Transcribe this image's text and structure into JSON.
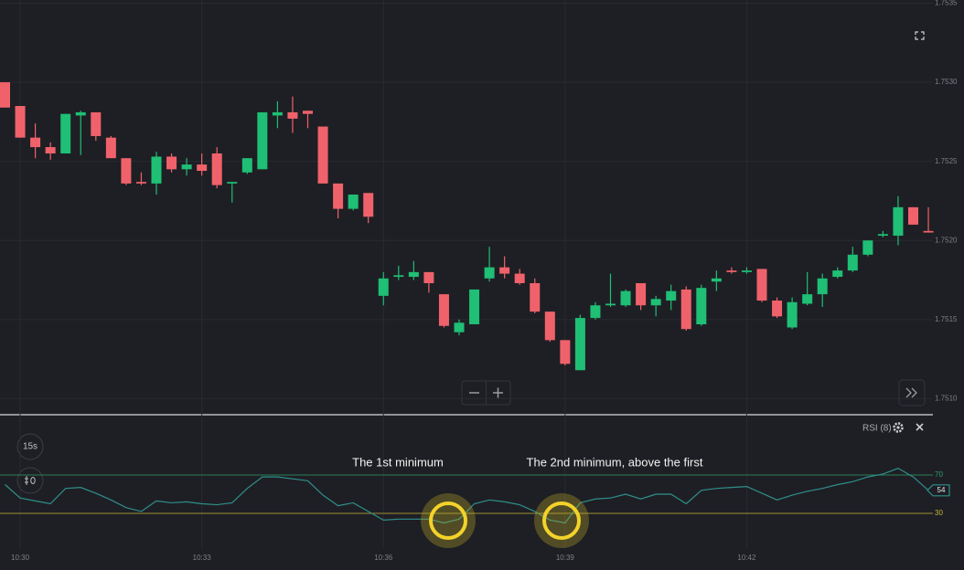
{
  "controls": {
    "interval": "15s"
  },
  "chart_data": [
    {
      "type": "candlestick",
      "categories": [
        null,
        "10:30",
        null,
        null,
        null,
        null,
        null,
        null,
        null,
        null,
        null,
        null,
        null,
        "10:33",
        null,
        null,
        null,
        null,
        null,
        null,
        null,
        null,
        null,
        null,
        null,
        "10:36",
        null,
        null,
        null,
        null,
        null,
        null,
        null,
        null,
        null,
        null,
        null,
        "10:39",
        null,
        null,
        null,
        null,
        null,
        null,
        null,
        null,
        null,
        null,
        null,
        "10:42",
        null,
        null,
        null,
        null,
        null,
        null,
        null,
        null,
        null,
        null,
        null,
        null
      ],
      "open": [
        1.753,
        1.75285,
        1.75265,
        1.75259,
        1.75255,
        1.75279,
        1.75281,
        1.75265,
        1.75252,
        1.75237,
        1.75236,
        1.75253,
        1.75245,
        1.75248,
        1.75255,
        1.75236,
        1.75243,
        1.75245,
        1.75279,
        1.75281,
        1.75282,
        1.75272,
        1.75236,
        1.7522,
        1.7523,
        1.75165,
        1.75177,
        1.75177,
        1.7518,
        1.75166,
        1.75142,
        1.75147,
        1.75176,
        1.75183,
        1.75179,
        1.75173,
        1.75155,
        1.75137,
        1.75118,
        1.75151,
        1.75159,
        1.75159,
        1.75173,
        1.75159,
        1.75162,
        1.75169,
        1.75147,
        1.75174,
        1.75181,
        1.7518,
        1.75182,
        1.75162,
        1.75145,
        1.7516,
        1.75166,
        1.75177,
        1.75181,
        1.75191,
        1.75203,
        1.75203,
        1.75221,
        1.75206
      ],
      "high": [
        1.753,
        1.75285,
        1.75274,
        1.75262,
        1.7528,
        1.75282,
        1.75281,
        1.75266,
        1.75252,
        1.75243,
        1.75256,
        1.75255,
        1.75252,
        1.75255,
        1.75259,
        1.75237,
        1.75252,
        1.75281,
        1.75288,
        1.75291,
        1.75282,
        1.75272,
        1.75236,
        1.75229,
        1.7523,
        1.7518,
        1.75184,
        1.75187,
        1.7518,
        1.75166,
        1.7515,
        1.75169,
        1.75196,
        1.7519,
        1.75182,
        1.75176,
        1.75155,
        1.75137,
        1.75153,
        1.75161,
        1.75179,
        1.75169,
        1.75173,
        1.75165,
        1.75172,
        1.75171,
        1.75172,
        1.75181,
        1.75183,
        1.75183,
        1.75182,
        1.75164,
        1.75164,
        1.7518,
        1.75179,
        1.75183,
        1.75196,
        1.752,
        1.75206,
        1.75228,
        1.75221,
        1.75221
      ],
      "low": [
        1.75284,
        1.75265,
        1.75252,
        1.75251,
        1.75255,
        1.75254,
        1.75263,
        1.75252,
        1.75235,
        1.75235,
        1.75229,
        1.75243,
        1.75241,
        1.75241,
        1.75233,
        1.75224,
        1.75242,
        1.75245,
        1.75271,
        1.75268,
        1.75271,
        1.75236,
        1.75214,
        1.75219,
        1.75211,
        1.75159,
        1.75175,
        1.75175,
        1.75167,
        1.75145,
        1.7514,
        1.75147,
        1.75174,
        1.75176,
        1.75172,
        1.75154,
        1.75136,
        1.75121,
        1.75118,
        1.7515,
        1.75158,
        1.75158,
        1.75156,
        1.75152,
        1.75156,
        1.75143,
        1.75146,
        1.75168,
        1.75179,
        1.75179,
        1.75161,
        1.75151,
        1.75144,
        1.75159,
        1.75158,
        1.75176,
        1.7518,
        1.7519,
        1.75202,
        1.75197,
        1.7521,
        1.75205
      ],
      "close": [
        1.75284,
        1.75265,
        1.75259,
        1.75255,
        1.7528,
        1.75281,
        1.75266,
        1.75252,
        1.75236,
        1.75236,
        1.75253,
        1.75245,
        1.75248,
        1.75244,
        1.75235,
        1.75237,
        1.75252,
        1.75281,
        1.75281,
        1.75277,
        1.7528,
        1.75236,
        1.7522,
        1.75229,
        1.75215,
        1.75176,
        1.75178,
        1.7518,
        1.75173,
        1.75146,
        1.75148,
        1.75169,
        1.75183,
        1.75179,
        1.75173,
        1.75155,
        1.75137,
        1.75122,
        1.75151,
        1.75159,
        1.7516,
        1.75168,
        1.75159,
        1.75163,
        1.75168,
        1.75144,
        1.7517,
        1.75176,
        1.7518,
        1.75181,
        1.75162,
        1.75152,
        1.75161,
        1.75166,
        1.75176,
        1.75181,
        1.75191,
        1.752,
        1.75204,
        1.75221,
        1.7521,
        1.75205
      ],
      "up_color": "#1fbf75",
      "down_color": "#f0626b",
      "ylim": [
        1.75091,
        1.75352
      ],
      "yticks": [
        {
          "value": 1.751,
          "label": "1.7510"
        },
        1.7515,
        {
          "value": 1.752,
          "label": "1.7520"
        },
        1.7525,
        {
          "value": 1.753,
          "label": "1.7530"
        },
        1.7535
      ],
      "grid": true
    },
    {
      "type": "line",
      "title": "RSI (8)",
      "color": "#2f8f8c",
      "values": [
        60,
        46,
        43,
        40,
        56,
        57,
        51,
        44,
        36,
        32,
        43,
        41,
        42,
        40,
        39,
        41,
        56,
        68,
        68,
        66,
        64,
        49,
        38,
        41,
        32,
        23,
        24,
        24,
        24,
        20,
        24,
        40,
        44,
        42,
        39,
        32,
        23,
        20,
        41,
        45,
        46,
        50,
        45,
        50,
        50,
        40,
        54,
        56,
        57,
        58,
        51,
        44,
        49,
        53,
        56,
        60,
        63,
        68,
        71,
        77,
        68,
        54
      ],
      "ylim": [
        0,
        100
      ],
      "yticks": [
        30,
        70
      ],
      "ytick_colors": [
        "#c8b43a",
        "#2e9f6a"
      ],
      "annotations": [
        "The 1st minimum",
        "The 2nd minimum, above the first"
      ]
    }
  ]
}
